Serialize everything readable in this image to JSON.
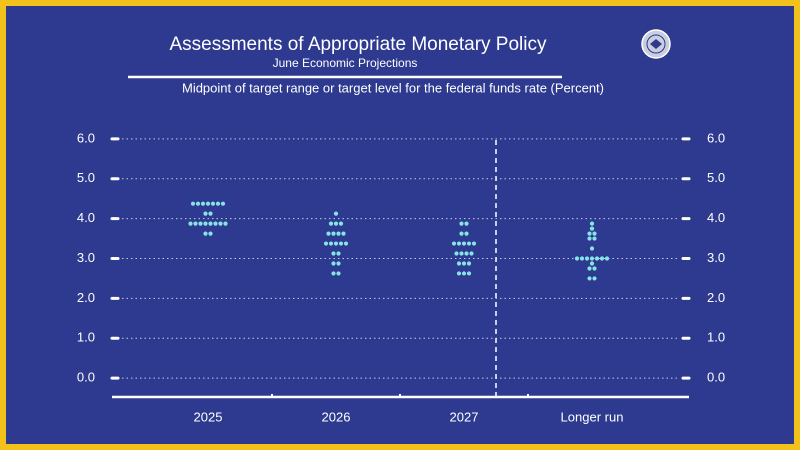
{
  "chart_data": {
    "type": "dot",
    "title": "Assessments of Appropriate Monetary Policy",
    "subtitle": "June Economic Projections",
    "ylabel": "Midpoint of target range or target level for the federal funds rate (Percent)",
    "categories": [
      "2025",
      "2026",
      "2027",
      "Longer run"
    ],
    "dots": [
      [
        {
          "value": 4.375,
          "count": 7
        },
        {
          "value": 4.125,
          "count": 2
        },
        {
          "value": 3.875,
          "count": 8
        },
        {
          "value": 3.625,
          "count": 2
        }
      ],
      [
        {
          "value": 4.125,
          "count": 1
        },
        {
          "value": 3.875,
          "count": 3
        },
        {
          "value": 3.625,
          "count": 4
        },
        {
          "value": 3.375,
          "count": 5
        },
        {
          "value": 3.125,
          "count": 2
        },
        {
          "value": 2.875,
          "count": 2
        },
        {
          "value": 2.625,
          "count": 2
        }
      ],
      [
        {
          "value": 3.875,
          "count": 2
        },
        {
          "value": 3.625,
          "count": 2
        },
        {
          "value": 3.375,
          "count": 5
        },
        {
          "value": 3.125,
          "count": 4
        },
        {
          "value": 2.875,
          "count": 3
        },
        {
          "value": 2.625,
          "count": 3
        }
      ],
      [
        {
          "value": 3.875,
          "count": 1
        },
        {
          "value": 3.75,
          "count": 1
        },
        {
          "value": 3.625,
          "count": 2
        },
        {
          "value": 3.5,
          "count": 2
        },
        {
          "value": 3.25,
          "count": 1
        },
        {
          "value": 3.0,
          "count": 7
        },
        {
          "value": 2.875,
          "count": 1
        },
        {
          "value": 2.75,
          "count": 2
        },
        {
          "value": 2.5,
          "count": 2
        }
      ]
    ],
    "color": "#86e3e6",
    "ylim": [
      -0.5,
      6.5
    ],
    "yticks": [
      {
        "value": 0,
        "label": "0.0"
      },
      {
        "value": 1,
        "label": "1.0"
      },
      {
        "value": 2,
        "label": "2.0"
      },
      {
        "value": 3,
        "label": "3.0"
      },
      {
        "value": 4,
        "label": "4.0"
      },
      {
        "value": 5,
        "label": "5.0"
      },
      {
        "value": 6,
        "label": "6.0"
      }
    ],
    "grid": true
  }
}
